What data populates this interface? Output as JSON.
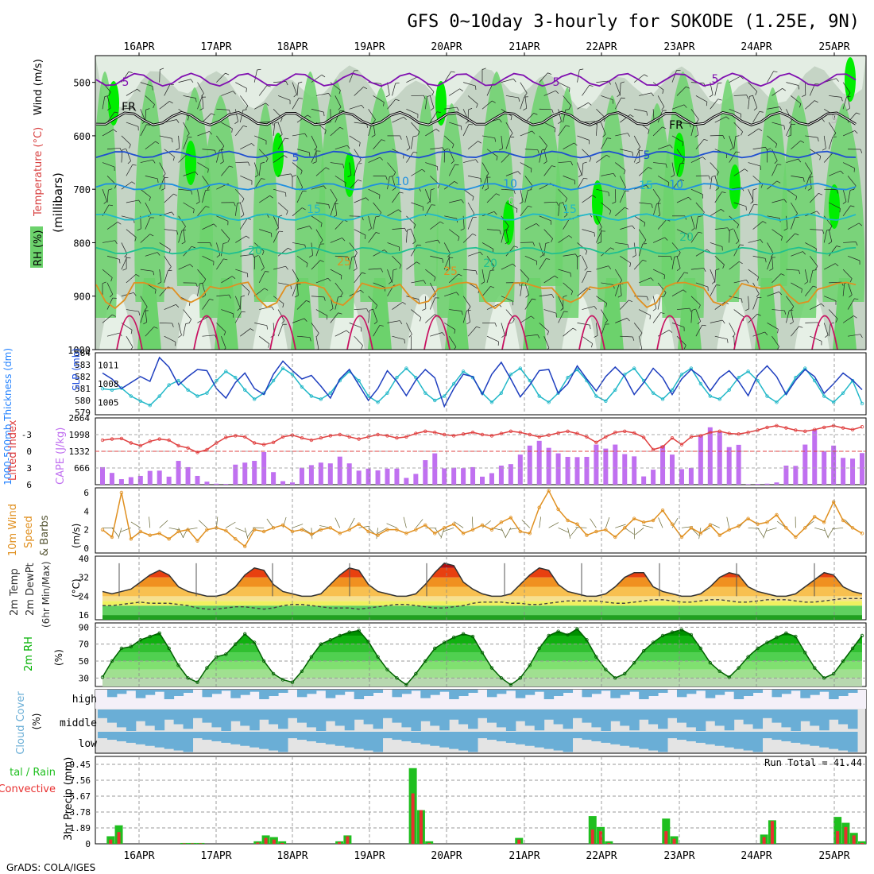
{
  "title": "GFS 0~10day 3-hourly for SOKODE (1.25E, 9N)",
  "credit": "GrADS: COLA/IGES",
  "run_total_label": "Run Total = 41.44",
  "date_labels": [
    "16APR",
    "17APR",
    "18APR",
    "19APR",
    "20APR",
    "21APR",
    "22APR",
    "23APR",
    "24APR",
    "25APR"
  ],
  "colors": {
    "rh_light": "#e6f0e6",
    "rh_mid": "#c5d4c5",
    "rh_green": "#6cd26c",
    "rh_bright": "#00ee00",
    "thickness": "#1f3fbf",
    "slp": "#22b8c8",
    "cape": "#c070f0",
    "lifted": "#e04040",
    "wind": "#e09020",
    "precip_total": "#1fbf1f",
    "precip_conv": "#e83030",
    "cloud": "#6aaed6",
    "cloud_bg": "#e4e4e4",
    "rh2m": "#00b000"
  },
  "chart_data": [
    {
      "type": "heatmap",
      "panel": "upper-air cross section",
      "ylabel": "(millibars)",
      "side_labels": [
        "RH (%)",
        "Temperature (°C)",
        "Wind (m/s)"
      ],
      "y_ticks": [
        500,
        600,
        700,
        800,
        900,
        1000
      ],
      "ylim": [
        1000,
        450
      ],
      "contour_labels": [
        "5",
        "FR",
        "FR",
        "5",
        "5",
        "10",
        "10",
        "10",
        "15",
        "15",
        "15",
        "20",
        "20",
        "20",
        "25",
        "25",
        "0",
        "5",
        "5",
        "5"
      ],
      "isotherms": [
        {
          "name": "-5",
          "pressure": 495
        },
        {
          "name": "FR (0°C)",
          "pressure": 568
        },
        {
          "name": "5",
          "pressure": 635
        },
        {
          "name": "10",
          "pressure": 695
        },
        {
          "name": "15",
          "pressure": 752
        },
        {
          "name": "20",
          "pressure": 815
        },
        {
          "name": "25",
          "pressure": 880
        }
      ]
    },
    {
      "type": "line",
      "panel": "thickness and SLP",
      "left_label": "1000-500mb Thickness (dm)",
      "right_label": "SLP (mb)",
      "left_ticks": [
        579,
        580,
        581,
        582,
        583,
        584
      ],
      "right_ticks": [
        1005,
        1008,
        1011
      ],
      "series": [
        {
          "name": "1000-500mb Thickness (dm)",
          "values": [
            582.3,
            581.8,
            581.0,
            581.5,
            582.0,
            581.6,
            583.6,
            582.8,
            581.3,
            582.0,
            582.6,
            582.5,
            581.0,
            580.2,
            581.5,
            582.3,
            581.0,
            580.5,
            582.2,
            583.3,
            582.5,
            581.8,
            582.1,
            581.2,
            580.2,
            581.8,
            582.6,
            581.3,
            580.0,
            581.0,
            582.5,
            581.6,
            580.4,
            581.7,
            582.6,
            581.9,
            579.5,
            581.0,
            582.2,
            582.0,
            580.5,
            582.2,
            583.2,
            581.8,
            580.3,
            581.3,
            582.5,
            582.6,
            580.6,
            581.4,
            582.9,
            581.8,
            580.8,
            582.0,
            582.8,
            582.0,
            580.5,
            581.5,
            582.7,
            581.9,
            580.5,
            581.8,
            582.6,
            582.0,
            580.8,
            581.9,
            582.5,
            581.6,
            580.4,
            582.1,
            582.9,
            582.0,
            580.5,
            581.7,
            582.6,
            582.0,
            580.6,
            581.4,
            582.3,
            581.7,
            580.9
          ]
        },
        {
          "name": "SLP (mb)",
          "values": [
            1007.2,
            1007.0,
            1007.3,
            1006.0,
            1005.2,
            1004.5,
            1006.0,
            1007.8,
            1008.5,
            1007.0,
            1006.0,
            1006.5,
            1008.5,
            1010.0,
            1009.0,
            1007.0,
            1005.5,
            1006.5,
            1008.5,
            1010.5,
            1009.5,
            1007.5,
            1006.0,
            1005.5,
            1006.5,
            1008.5,
            1010.0,
            1008.5,
            1006.0,
            1005.0,
            1006.5,
            1009.0,
            1010.5,
            1009.0,
            1006.5,
            1005.3,
            1006.0,
            1008.0,
            1010.0,
            1009.0,
            1006.5,
            1005.0,
            1006.5,
            1009.5,
            1010.5,
            1008.5,
            1006.0,
            1005.0,
            1006.5,
            1009.0,
            1010.3,
            1008.5,
            1006.0,
            1005.2,
            1007.0,
            1009.5,
            1010.5,
            1008.5,
            1006.5,
            1005.5,
            1007.0,
            1009.5,
            1010.5,
            1008.0,
            1006.0,
            1005.5,
            1007.0,
            1009.0,
            1010.0,
            1008.5,
            1006.0,
            1005.0,
            1006.5,
            1009.0,
            1010.5,
            1008.5,
            1006.0,
            1005.0,
            1006.5,
            1008.5,
            1004.8
          ]
        }
      ]
    },
    {
      "type": "bar",
      "panel": "CAPE and Lifted Index",
      "left_label": "Lifted Index",
      "right_label": "CAPE (J/kg)",
      "left_ticks": [
        "-3",
        "0",
        "3",
        "6"
      ],
      "right_ticks": [
        666,
        1332,
        1998,
        2664
      ],
      "series": [
        {
          "name": "CAPE (J/kg)",
          "values": [
            700,
            470,
            220,
            300,
            350,
            550,
            560,
            320,
            950,
            700,
            350,
            120,
            40,
            30,
            800,
            880,
            950,
            1300,
            500,
            140,
            90,
            680,
            780,
            880,
            850,
            1120,
            850,
            560,
            640,
            570,
            640,
            640,
            270,
            430,
            980,
            1250,
            650,
            680,
            660,
            700,
            320,
            460,
            760,
            820,
            1200,
            1560,
            1750,
            1470,
            1250,
            1110,
            1100,
            1110,
            1600,
            1440,
            1600,
            1220,
            1130,
            330,
            600,
            1560,
            1200,
            620,
            670,
            1960,
            2290,
            2100,
            1500,
            1590,
            20,
            30,
            40,
            90,
            760,
            750,
            1600,
            2190,
            1340,
            1560,
            1070,
            1040,
            1260
          ]
        },
        {
          "name": "Lifted Index",
          "values": [
            -2.0,
            -2.2,
            -2.3,
            -1.5,
            -1.0,
            -1.8,
            -2.2,
            -2.0,
            -1.0,
            -0.6,
            0.2,
            -0.3,
            -1.5,
            -2.5,
            -2.8,
            -2.6,
            -1.5,
            -1.2,
            -1.6,
            -2.6,
            -2.9,
            -2.4,
            -2.0,
            -2.4,
            -2.8,
            -3.0,
            -2.6,
            -2.2,
            -2.6,
            -3.0,
            -2.8,
            -2.4,
            -2.6,
            -3.2,
            -3.6,
            -3.4,
            -3.0,
            -2.8,
            -3.1,
            -3.4,
            -3.0,
            -2.8,
            -3.2,
            -3.6,
            -3.4,
            -3.0,
            -2.6,
            -2.9,
            -3.3,
            -3.6,
            -3.2,
            -2.6,
            -1.6,
            -2.6,
            -3.4,
            -3.6,
            -3.3,
            -2.5,
            -0.3,
            -0.8,
            -2.4,
            -1.2,
            -2.6,
            -2.8,
            -3.4,
            -3.6,
            -3.2,
            -3.1,
            -3.4,
            -3.8,
            -4.3,
            -4.6,
            -4.2,
            -3.8,
            -3.6,
            -3.9,
            -4.3,
            -4.6,
            -4.2,
            -3.9,
            -4.4
          ]
        }
      ]
    },
    {
      "type": "line",
      "panel": "10m Wind",
      "ylabel": "10m Wind Speed & Barbs (m/s)",
      "y_ticks": [
        0,
        2,
        4,
        6
      ],
      "series": [
        {
          "name": "10m Wind Speed (m/s)",
          "values": [
            2.0,
            1.2,
            6.0,
            1.0,
            1.8,
            1.4,
            1.6,
            1.0,
            1.8,
            2.0,
            0.8,
            2.0,
            2.2,
            1.9,
            1.0,
            0.2,
            2.0,
            1.8,
            2.2,
            2.5,
            1.8,
            2.0,
            1.5,
            2.0,
            2.2,
            1.6,
            2.0,
            2.6,
            1.8,
            1.4,
            2.0,
            2.0,
            1.6,
            2.0,
            2.5,
            1.6,
            2.2,
            2.6,
            1.6,
            2.0,
            2.5,
            2.0,
            2.8,
            3.3,
            1.8,
            1.6,
            4.4,
            6.2,
            4.2,
            3.0,
            2.6,
            1.4,
            1.8,
            2.0,
            1.2,
            2.2,
            3.2,
            2.8,
            3.0,
            4.1,
            2.6,
            1.2,
            2.2,
            1.6,
            2.5,
            1.4,
            2.0,
            2.4,
            3.2,
            2.6,
            2.8,
            3.6,
            2.2,
            1.2,
            2.2,
            3.4,
            2.8,
            5.0,
            3.0,
            2.2,
            1.6
          ]
        }
      ]
    },
    {
      "type": "area",
      "panel": "2m Temp",
      "ylabel": "2m Temp, 2m DewPt (6hr Min/Max) (°C)",
      "y_ticks": [
        16,
        24,
        32,
        40
      ],
      "series": [
        {
          "name": "2m Temp (°C)",
          "values": [
            26,
            25,
            26,
            27,
            30,
            33,
            35,
            33,
            28,
            26,
            25,
            24,
            24,
            25,
            28,
            33,
            36,
            35,
            29,
            26,
            25,
            24,
            24,
            25,
            29,
            33,
            36,
            35,
            29,
            26,
            25,
            24,
            24,
            25,
            29,
            34,
            38,
            37,
            30,
            27,
            25,
            24,
            24,
            25,
            29,
            33,
            36,
            35,
            29,
            26,
            25,
            24,
            24,
            25,
            28,
            32,
            34,
            34,
            28,
            26,
            25,
            24,
            24,
            25,
            28,
            32,
            34,
            33,
            28,
            26,
            25,
            24,
            24,
            25,
            28,
            31,
            34,
            33,
            28,
            26,
            25
          ]
        },
        {
          "name": "2m DewPt (°C)",
          "values": [
            20,
            20,
            20.5,
            21,
            21.5,
            21,
            21,
            21,
            20.5,
            20,
            19,
            18.5,
            18.5,
            19,
            19.5,
            19.5,
            19,
            18.5,
            19,
            20,
            20.5,
            20.5,
            20,
            19.5,
            19,
            19,
            19,
            18.5,
            19,
            19.5,
            20,
            20.5,
            20.5,
            20,
            19.5,
            19,
            19,
            19.5,
            20,
            21,
            21.5,
            21.5,
            21.5,
            21,
            21,
            20.5,
            20.5,
            21,
            21.5,
            22,
            22,
            22,
            22,
            21.5,
            21,
            21,
            21.5,
            22,
            22.5,
            22.5,
            22,
            21.5,
            21.5,
            22,
            22.5,
            22.5,
            22,
            21.5,
            21.5,
            22,
            22.5,
            22.5,
            22.5,
            22,
            21.5,
            21.5,
            22,
            22.5,
            23,
            23,
            23
          ]
        }
      ]
    },
    {
      "type": "area",
      "panel": "2m RH",
      "ylabel": "2m RH (%)",
      "y_ticks": [
        30,
        50,
        70,
        90
      ],
      "series": [
        {
          "name": "2m RH (%)",
          "values": [
            31,
            50,
            65,
            67,
            75,
            79,
            83,
            65,
            45,
            30,
            25,
            42,
            55,
            58,
            70,
            82,
            72,
            50,
            35,
            28,
            25,
            38,
            55,
            70,
            75,
            80,
            84,
            86,
            73,
            55,
            40,
            30,
            22,
            35,
            50,
            65,
            72,
            78,
            82,
            79,
            60,
            42,
            30,
            22,
            30,
            45,
            65,
            80,
            85,
            81,
            88,
            75,
            55,
            40,
            30,
            35,
            48,
            62,
            72,
            80,
            84,
            87,
            81,
            65,
            48,
            38,
            31,
            42,
            55,
            65,
            72,
            78,
            83,
            79,
            60,
            42,
            30,
            35,
            50,
            65,
            80
          ]
        }
      ]
    },
    {
      "type": "heatmap",
      "panel": "Cloud Cover",
      "ylabel": "Cloud Cover (%)",
      "row_labels": [
        "high",
        "middle",
        "low"
      ]
    },
    {
      "type": "bar",
      "panel": "3hr Precip",
      "ylabel": "3hr Precip (mm)",
      "side_label": "tal / Rain Convective",
      "y_ticks": [
        0,
        1.89,
        3.78,
        5.67,
        7.56,
        9.45
      ],
      "series": [
        {
          "name": "Total (mm)",
          "values": [
            0,
            0.9,
            2.2,
            0,
            0,
            0,
            0,
            0,
            0,
            0,
            0.1,
            0.1,
            0.1,
            0,
            0,
            0,
            0,
            0,
            0,
            0.3,
            1.0,
            0.8,
            0.3,
            0,
            0,
            0,
            0,
            0,
            0,
            0.3,
            1.0,
            0,
            0,
            0,
            0,
            0,
            0,
            0,
            9.0,
            4.0,
            0.3,
            0,
            0,
            0,
            0,
            0,
            0,
            0,
            0,
            0,
            0,
            0.7,
            0,
            0,
            0,
            0,
            0,
            0,
            0,
            0,
            3.3,
            2.0,
            0.3,
            0,
            0,
            0,
            0,
            0,
            0,
            3.0,
            0.9,
            0,
            0,
            0,
            0,
            0,
            0,
            0,
            0,
            0,
            0,
            1.1,
            2.8,
            0,
            0,
            0,
            0,
            0,
            0,
            0,
            3.2,
            2.5,
            1.3,
            0.3
          ]
        },
        {
          "name": "Convective (mm)",
          "values": [
            0,
            0.5,
            1.4,
            0,
            0,
            0,
            0,
            0,
            0,
            0,
            0.05,
            0.05,
            0.05,
            0,
            0,
            0,
            0,
            0,
            0,
            0.15,
            0.7,
            0.5,
            0.1,
            0,
            0,
            0,
            0,
            0,
            0,
            0.2,
            0.9,
            0,
            0,
            0,
            0,
            0,
            0,
            0,
            6.0,
            4.0,
            0.1,
            0,
            0,
            0,
            0,
            0,
            0,
            0,
            0,
            0,
            0,
            0.5,
            0,
            0,
            0,
            0,
            0,
            0,
            0,
            0,
            1.7,
            1.5,
            0.1,
            0,
            0,
            0,
            0,
            0,
            0,
            1.5,
            0.6,
            0,
            0,
            0,
            0,
            0,
            0,
            0,
            0,
            0,
            0,
            0.8,
            2.7,
            0,
            0,
            0,
            0,
            0,
            0,
            0,
            1.5,
            2.0,
            1.0,
            0.1
          ]
        }
      ]
    }
  ]
}
